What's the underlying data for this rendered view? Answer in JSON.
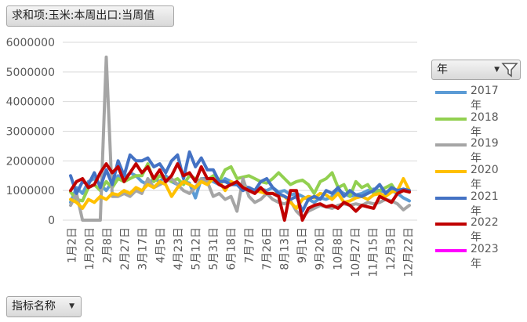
{
  "fields": {
    "value_field": "求和项:玉米:本周出口:当周值",
    "legend_field": "年",
    "row_field": "指标名称"
  },
  "icons": {
    "dropdown": "chevron-down-icon",
    "filter": "filter-icon"
  },
  "chart_data": {
    "type": "line",
    "y_ticks": [
      "0",
      "1000000",
      "2000000",
      "3000000",
      "4000000",
      "5000000",
      "6000000"
    ],
    "ylim": [
      0,
      6000000
    ],
    "grid": true,
    "legend_position": "right",
    "x_tick_labels": [
      "1月2日",
      "1月20日",
      "2月8日",
      "2月27日",
      "3月17日",
      "4月5日",
      "4月23日",
      "5月12日",
      "5月31日",
      "6月18日",
      "7月7日",
      "7月26日",
      "8月13日",
      "9月1日",
      "9月20日",
      "10月8日",
      "10月27日",
      "11月15日",
      "12月3日",
      "12月22日"
    ],
    "series": [
      {
        "name": "2017年",
        "color": "#5B9BD5",
        "values": [
          600000,
          1100000,
          900000,
          1300000,
          1400000,
          1200000,
          1000000,
          1300000,
          1500000,
          1400000,
          1600000,
          1500000,
          1300000,
          1200000,
          1400000,
          1300000,
          1500000,
          1300000,
          1200000,
          1300000,
          1250000,
          750000,
          1400000,
          1400000,
          1300000,
          1200000,
          1400000,
          1300000,
          1200000,
          1150000,
          1100000,
          1000000,
          1050000,
          1000000,
          1100000,
          950000,
          1000000,
          850000,
          900000,
          800000,
          700000,
          600000,
          750000,
          700000,
          800000,
          1000000,
          900000,
          800000,
          850000,
          900000,
          1000000,
          1050000,
          1000000,
          950000,
          1000000,
          900000,
          750000,
          650000
        ]
      },
      {
        "name": "2018年",
        "color": "#92D050",
        "values": [
          950000,
          700000,
          650000,
          1100000,
          1200000,
          1000000,
          1300000,
          1100000,
          1400000,
          1300000,
          1400000,
          1500000,
          1500000,
          1900000,
          1300000,
          1500000,
          1400000,
          1300000,
          1400000,
          1200000,
          1500000,
          1400000,
          1300000,
          1350000,
          1500000,
          1300000,
          1700000,
          1800000,
          1400000,
          1450000,
          1500000,
          1400000,
          1300000,
          1250000,
          1400000,
          1600000,
          1400000,
          1200000,
          1300000,
          1350000,
          1200000,
          900000,
          1300000,
          1400000,
          1600000,
          1100000,
          1200000,
          800000,
          1300000,
          1100000,
          1200000,
          900000,
          1000000,
          1100000,
          1200000,
          900000,
          1000000,
          950000
        ]
      },
      {
        "name": "2019年",
        "color": "#A5A5A5",
        "values": [
          500000,
          900000,
          0,
          0,
          0,
          0,
          5500000,
          800000,
          800000,
          900000,
          800000,
          1000000,
          900000,
          1400000,
          1100000,
          1200000,
          1300000,
          1400000,
          1200000,
          1000000,
          900000,
          1100000,
          1400000,
          1300000,
          800000,
          900000,
          700000,
          800000,
          300000,
          1400000,
          800000,
          600000,
          700000,
          900000,
          700000,
          600000,
          550000,
          650000,
          300000,
          100000,
          300000,
          400000,
          500000,
          450000,
          400000,
          500000,
          550000,
          500000,
          550000,
          500000,
          600000,
          550000,
          600000,
          700000,
          650000,
          550000,
          350000,
          500000
        ]
      },
      {
        "name": "2020年",
        "color": "#FFC000",
        "values": [
          700000,
          600000,
          400000,
          700000,
          600000,
          800000,
          700000,
          900000,
          850000,
          1000000,
          900000,
          1100000,
          1000000,
          1200000,
          1100000,
          1300000,
          1200000,
          800000,
          1100000,
          1300000,
          1200000,
          1100000,
          1300000,
          1200000,
          1400000,
          1300000,
          1000000,
          1300000,
          1200000,
          1100000,
          1050000,
          1000000,
          950000,
          900000,
          900000,
          850000,
          800000,
          600000,
          400000,
          700000,
          800000,
          750000,
          900000,
          850000,
          700000,
          900000,
          600000,
          650000,
          750000,
          800000,
          700000,
          850000,
          900000,
          800000,
          950000,
          1000000,
          1400000,
          1000000
        ]
      },
      {
        "name": "2021年",
        "color": "#4472C4",
        "values": [
          1500000,
          900000,
          1300000,
          1200000,
          1600000,
          1100000,
          1700000,
          1200000,
          2000000,
          1500000,
          2200000,
          2000000,
          2000000,
          2100000,
          1800000,
          1900000,
          1600000,
          2000000,
          2200000,
          1400000,
          2300000,
          1800000,
          2100000,
          1700000,
          1700000,
          1300000,
          1300000,
          1200000,
          1200000,
          1000000,
          1100000,
          1000000,
          1300000,
          1400000,
          1100000,
          900000,
          800000,
          700000,
          800000,
          300000,
          700000,
          800000,
          700000,
          1000000,
          900000,
          1100000,
          800000,
          1000000,
          850000,
          800000,
          900000,
          1000000,
          1200000,
          900000,
          1100000,
          1000000,
          1050000,
          1000000
        ]
      },
      {
        "name": "2022年",
        "color": "#C00000",
        "values": [
          1000000,
          1300000,
          1400000,
          1100000,
          1200000,
          1600000,
          1900000,
          1600000,
          1800000,
          1300000,
          1600000,
          1900000,
          1600000,
          1800000,
          1400000,
          1700000,
          1300000,
          1500000,
          1900000,
          1500000,
          1600000,
          1300000,
          1800000,
          1400000,
          1400000,
          1200000,
          1100000,
          1200000,
          1300000,
          1100000,
          1000000,
          900000,
          1100000,
          900000,
          900000,
          800000,
          0,
          1000000,
          1000000,
          0,
          400000,
          500000,
          550000,
          450000,
          500000,
          400000,
          600000,
          500000,
          300000,
          500000,
          450000,
          400000,
          800000,
          700000,
          600000,
          900000,
          1000000,
          950000
        ]
      },
      {
        "name": "2023年",
        "color": "#FF00FF",
        "values": []
      }
    ]
  }
}
